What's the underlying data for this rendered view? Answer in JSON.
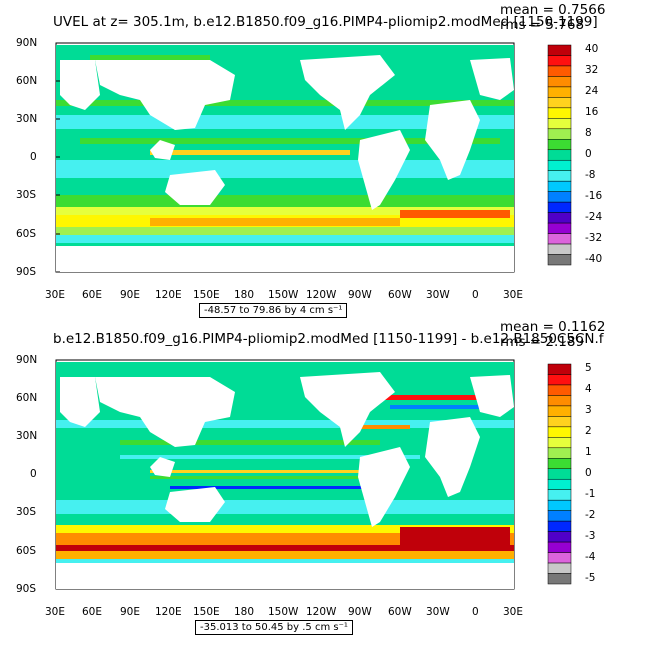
{
  "panels": [
    {
      "title": "UVEL at z= 305.1m, b.e12.B1850.f09_g16.PIMP4-pliomip2.modMed [1150-1199]",
      "mean": "mean = 0.7566",
      "rms": "rms = 5.768",
      "range_label": "-48.57 to 79.86 by 4 cm s⁻¹",
      "lat_labels": [
        "90N",
        "60N",
        "30N",
        "0",
        "30S",
        "60S",
        "90S"
      ],
      "lon_labels": [
        "30E",
        "60E",
        "90E",
        "120E",
        "150E",
        "180",
        "150W",
        "120W",
        "90W",
        "60W",
        "30W",
        "0",
        "30E"
      ],
      "colorbar": {
        "labels": [
          "40",
          "32",
          "24",
          "16",
          "8",
          "0",
          "-8",
          "-16",
          "-24",
          "-32",
          "-40"
        ],
        "colors": [
          "#c0000a",
          "#ff1010",
          "#ff5a00",
          "#ff8c00",
          "#ffb000",
          "#ffd21e",
          "#fff700",
          "#e6ff3c",
          "#a0f050",
          "#3cdc32",
          "#00dc96",
          "#00f0d0",
          "#46f0f0",
          "#00c8ff",
          "#0080ff",
          "#0028ff",
          "#5000c8",
          "#9600d2",
          "#dc64dc",
          "#c8c8c8",
          "#787878"
        ]
      }
    },
    {
      "title": "b.e12.B1850.f09_g16.PIMP4-pliomip2.modMed [1150-1199] - b.e12.B1850C5CN.f",
      "mean": "mean = 0.1162",
      "rms": "rms = 2.189",
      "range_label": "-35.013 to 50.45 by .5 cm s⁻¹",
      "lat_labels": [
        "90N",
        "60N",
        "30N",
        "0",
        "30S",
        "60S",
        "90S"
      ],
      "lon_labels": [
        "30E",
        "60E",
        "90E",
        "120E",
        "150E",
        "180",
        "150W",
        "120W",
        "90W",
        "60W",
        "30W",
        "0",
        "30E"
      ],
      "colorbar": {
        "labels": [
          "5",
          "4",
          "3",
          "2",
          "1",
          "0",
          "-1",
          "-2",
          "-3",
          "-4",
          "-5"
        ],
        "colors": [
          "#c0000a",
          "#ff1010",
          "#ff5a00",
          "#ff8c00",
          "#ffb000",
          "#ffd21e",
          "#fff700",
          "#e6ff3c",
          "#a0f050",
          "#3cdc32",
          "#00dc96",
          "#00f0d0",
          "#46f0f0",
          "#00c8ff",
          "#0080ff",
          "#0028ff",
          "#5000c8",
          "#9600d2",
          "#dc64dc",
          "#c8c8c8",
          "#787878"
        ]
      }
    }
  ]
}
